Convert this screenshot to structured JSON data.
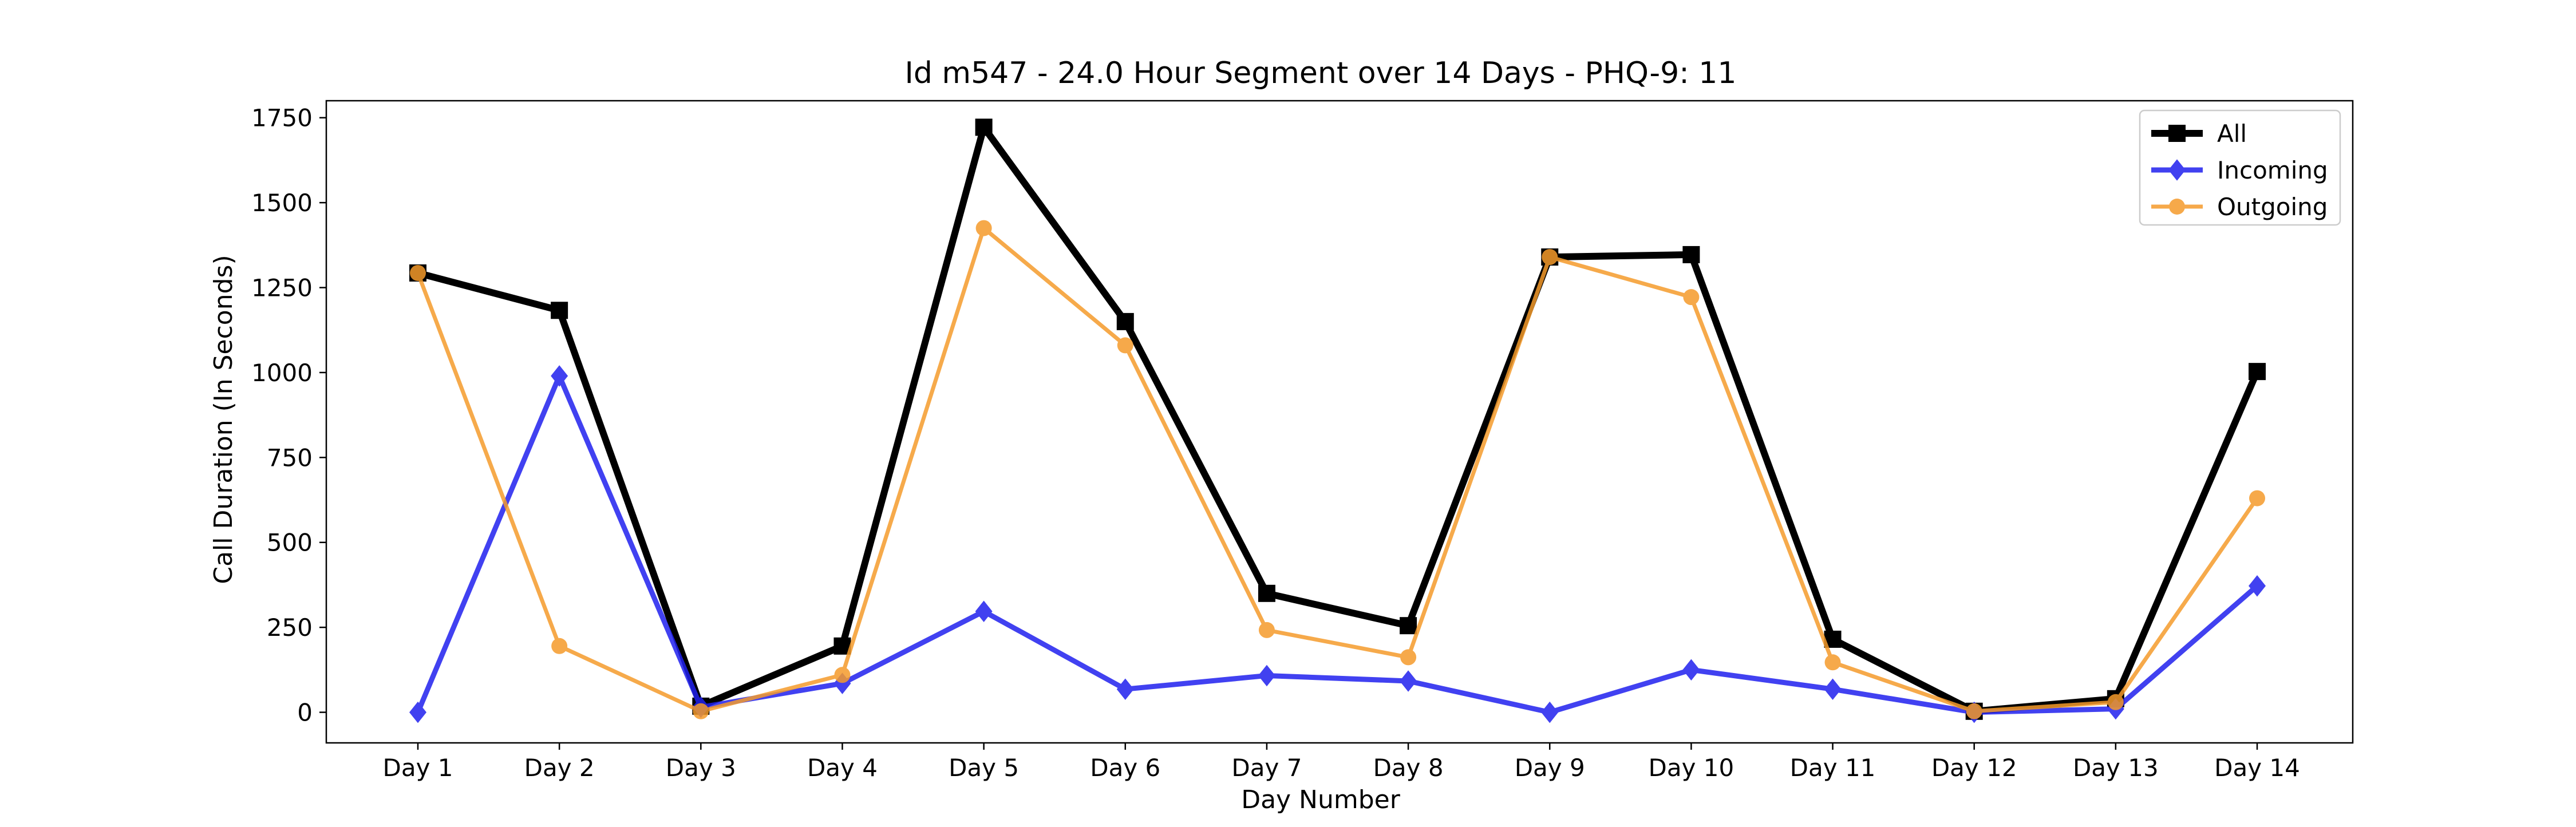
{
  "chart_data": {
    "type": "line",
    "title": "Id m547 - 24.0 Hour Segment over 14 Days - PHQ-9: 11",
    "xlabel": "Day Number",
    "ylabel": "Call Duration (In Seconds)",
    "categories": [
      "Day 1",
      "Day 2",
      "Day 3",
      "Day 4",
      "Day 5",
      "Day 6",
      "Day 7",
      "Day 8",
      "Day 9",
      "Day 10",
      "Day 11",
      "Day 12",
      "Day 13",
      "Day 14"
    ],
    "yticks": [
      0,
      250,
      500,
      750,
      1000,
      1250,
      1500,
      1750
    ],
    "ytick_labels": [
      "0",
      "250",
      "500",
      "750",
      "1000",
      "1250",
      "1500",
      "1750"
    ],
    "ylim": [
      -90,
      1800
    ],
    "grid": false,
    "legend_position": "top-right",
    "series": [
      {
        "name": "All",
        "color": "#000000",
        "marker": "square",
        "values": [
          1293,
          1183,
          18,
          195,
          1722,
          1150,
          350,
          255,
          1340,
          1347,
          215,
          3,
          40,
          1003
        ]
      },
      {
        "name": "Incoming",
        "color": "#2020ee",
        "marker": "diamond",
        "values": [
          0,
          990,
          15,
          85,
          297,
          68,
          108,
          92,
          0,
          125,
          68,
          0,
          10,
          372
        ]
      },
      {
        "name": "Outgoing",
        "color": "#f59b2b",
        "marker": "circle",
        "values": [
          1293,
          195,
          3,
          110,
          1425,
          1080,
          242,
          162,
          1340,
          1222,
          147,
          3,
          30,
          630
        ]
      }
    ]
  }
}
